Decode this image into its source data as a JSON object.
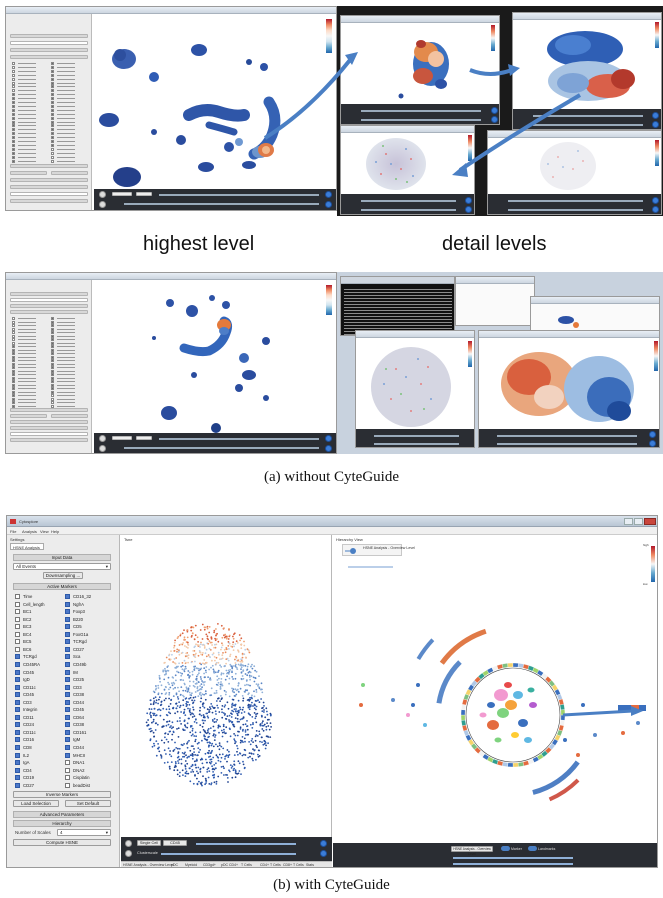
{
  "captions": {
    "highest_level": "highest level",
    "detail_levels": "detail levels",
    "without": "(a) without CyteGuide",
    "with": "(b) with CyteGuide"
  },
  "b_app": {
    "title": "Cytosplore",
    "menu": [
      "File",
      "Analysis",
      "View",
      "Help"
    ],
    "settings_title": "Settings",
    "tab": "HSNE Analysis",
    "tsne_panel_title": "Tsne",
    "hierarchy_panel_title": "Hierarchy View",
    "hierarchy_header": "HSNE Analysis - Overview Level",
    "input_data_header": "Input Data",
    "input_data_value": "All Events",
    "downsampling_label": "Downsampling ...",
    "active_markers_header": "Active Markers",
    "markers_left": [
      {
        "name": "Time",
        "on": false
      },
      {
        "name": "Cell_length",
        "on": false
      },
      {
        "name": "BC1",
        "on": false
      },
      {
        "name": "BC2",
        "on": false
      },
      {
        "name": "BC3",
        "on": false
      },
      {
        "name": "BC4",
        "on": false
      },
      {
        "name": "BC5",
        "on": false
      },
      {
        "name": "BC6",
        "on": false
      },
      {
        "name": "TCRgd",
        "on": true
      },
      {
        "name": "CD45RA",
        "on": true
      },
      {
        "name": "CD45",
        "on": true
      },
      {
        "name": "IgD",
        "on": true
      },
      {
        "name": "CD11c",
        "on": true
      },
      {
        "name": "CD45",
        "on": true
      },
      {
        "name": "CD3",
        "on": true
      },
      {
        "name": "Integrin",
        "on": true
      },
      {
        "name": "CD11",
        "on": true
      },
      {
        "name": "CD24",
        "on": true
      },
      {
        "name": "CD11c",
        "on": true
      },
      {
        "name": "CD16",
        "on": true
      },
      {
        "name": "CD8",
        "on": true
      },
      {
        "name": "IL2",
        "on": true
      },
      {
        "name": "IgA",
        "on": true
      },
      {
        "name": "CD4",
        "on": true
      },
      {
        "name": "CD19",
        "on": true
      },
      {
        "name": "CD27",
        "on": true
      }
    ],
    "markers_right": [
      {
        "name": "CD16_32",
        "on": true
      },
      {
        "name": "NgfrA",
        "on": true
      },
      {
        "name": "Foxp3",
        "on": true
      },
      {
        "name": "B220",
        "on": true
      },
      {
        "name": "CD5",
        "on": true
      },
      {
        "name": "FoxG1a",
        "on": true
      },
      {
        "name": "TCRgd",
        "on": true
      },
      {
        "name": "CD27",
        "on": true
      },
      {
        "name": "Sca",
        "on": true
      },
      {
        "name": "CD49b",
        "on": true
      },
      {
        "name": "IM",
        "on": true
      },
      {
        "name": "CD25",
        "on": true
      },
      {
        "name": "CD3",
        "on": true
      },
      {
        "name": "CD38",
        "on": true
      },
      {
        "name": "CD44",
        "on": true
      },
      {
        "name": "CD45",
        "on": true
      },
      {
        "name": "CD64",
        "on": true
      },
      {
        "name": "CD38",
        "on": true
      },
      {
        "name": "CD161",
        "on": true
      },
      {
        "name": "IgM",
        "on": true
      },
      {
        "name": "CD44",
        "on": true
      },
      {
        "name": "MHCII",
        "on": true
      },
      {
        "name": "DNA1",
        "on": false
      },
      {
        "name": "DNA2",
        "on": false
      },
      {
        "name": "Cisplatin",
        "on": false
      },
      {
        "name": "beadDist",
        "on": false
      }
    ],
    "inverse_markers_btn": "Inverse Markers",
    "load_selection_btn": "Load Selection",
    "set_default_btn": "Set Default",
    "advanced_params_header": "Advanced Parameters",
    "hierarchy_params_header": "Hierarchy",
    "scales_label": "Number of Scales",
    "scales_value": "4",
    "compute_btn": "Compute HSNE",
    "legend_high": "high",
    "legend_low": "low",
    "embed_footer_tabs": [
      "HSNE Analysis - Overview Level",
      "pDC",
      "Myeloid",
      "CD3gd+",
      "pDC CD4+",
      "T Cells",
      "CD4+ T Cells",
      "CD8+ T Cells",
      "Stats"
    ],
    "control_select_1": "Single Cell",
    "control_select_2": "CD45",
    "control_check": "Clusterscale",
    "hier_control_select": "HSNE Analysis - Overview Level",
    "hier_label_1": "Marker",
    "hier_label_2": "Landmarks"
  },
  "colors": {
    "blue_dark": "#1f4b9a",
    "blue_mid": "#3567b8",
    "orange": "#e8843a",
    "red": "#c0392b",
    "accent_arrow": "#4a7fc4"
  }
}
